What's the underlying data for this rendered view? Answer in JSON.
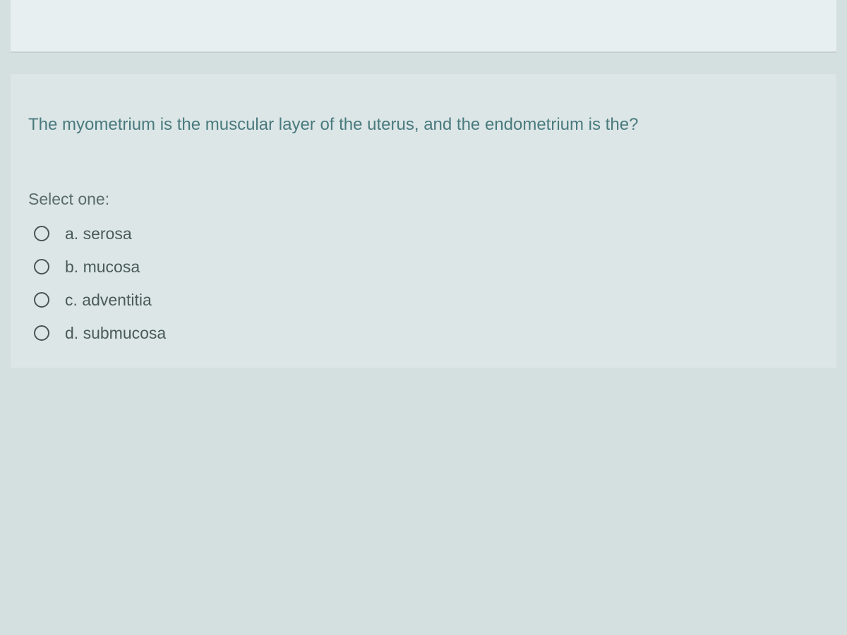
{
  "question": {
    "text": "The myometrium is the muscular layer of the uterus, and the endometrium is the?",
    "select_label": "Select one:",
    "options": [
      {
        "label": "a. serosa"
      },
      {
        "label": "b. mucosa"
      },
      {
        "label": "c. adventitia"
      },
      {
        "label": "d. submucosa"
      }
    ]
  },
  "colors": {
    "page_background": "#d4dfe0",
    "block_background": "#dce6e7",
    "question_text": "#4a7a7d",
    "label_text": "#5a6b6c",
    "option_text": "#4a5a5b",
    "radio_border": "#4a5556"
  }
}
